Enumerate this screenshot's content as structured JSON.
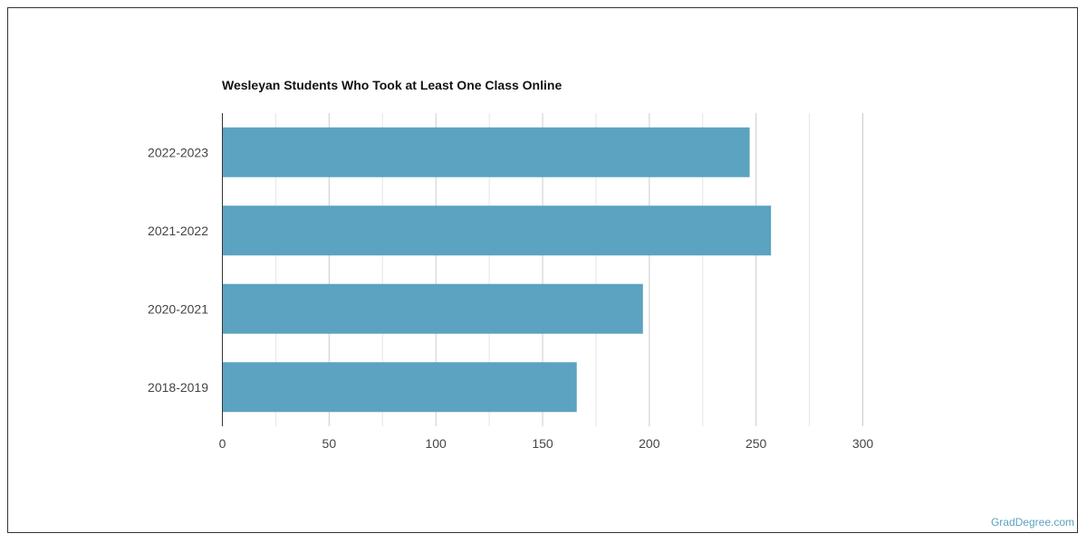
{
  "chart_data": {
    "type": "bar",
    "orientation": "horizontal",
    "title": "Wesleyan Students Who Took at Least One Class Online",
    "categories": [
      "2022-2023",
      "2021-2022",
      "2020-2021",
      "2018-2019"
    ],
    "values": [
      247,
      257,
      197,
      166
    ],
    "xlim": [
      0,
      300
    ],
    "xticks": [
      0,
      50,
      100,
      150,
      200,
      250,
      300
    ],
    "xlabel": "",
    "ylabel": "",
    "grid": true,
    "bar_color": "#5ba3c0"
  },
  "footer": {
    "credit": "GradDegree.com"
  }
}
